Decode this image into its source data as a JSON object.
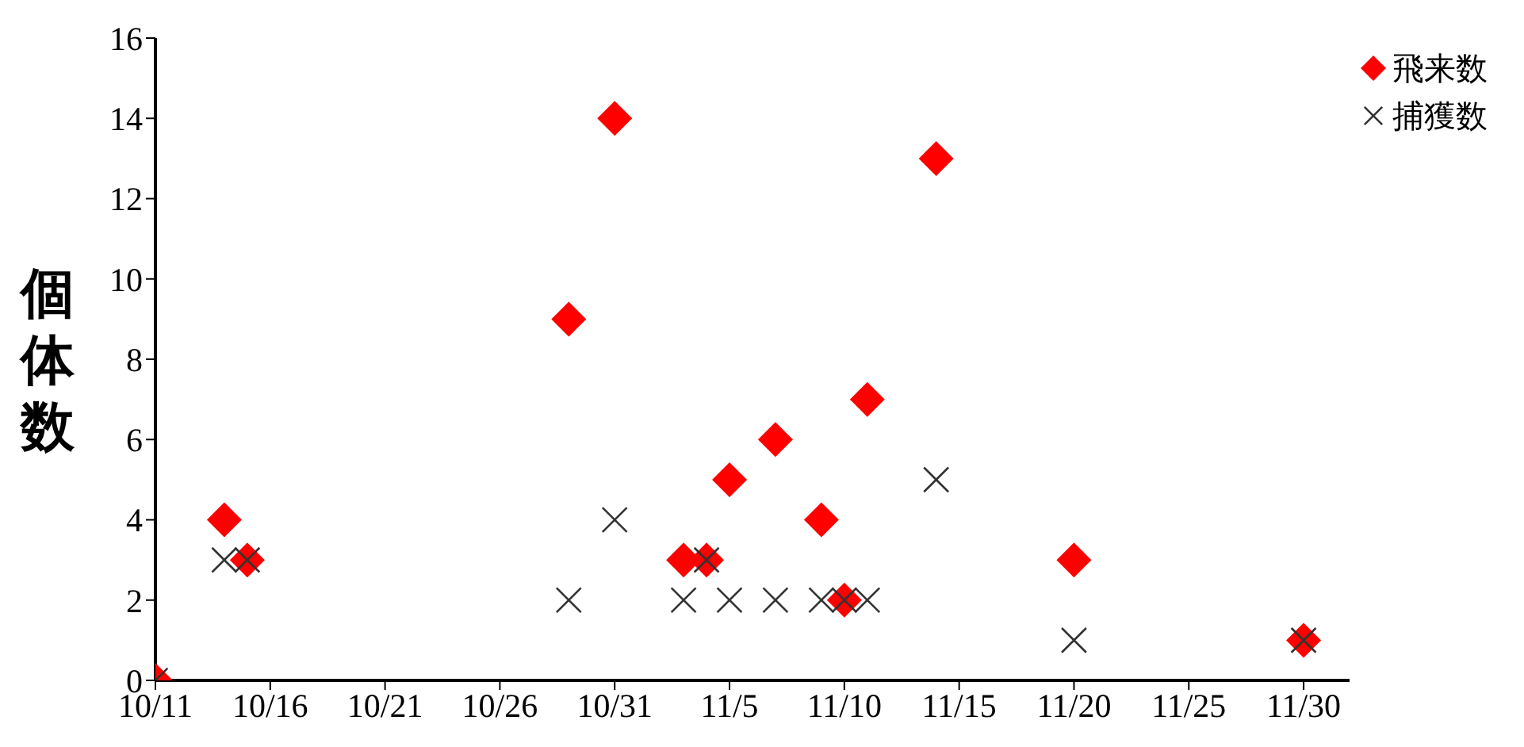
{
  "chart_data": {
    "type": "scatter",
    "ylabel": "個体数",
    "x": [
      "--10-11",
      "--10-14",
      "--10-15",
      "--10-29",
      "--10-31",
      "--11-03",
      "--11-04",
      "--11-05",
      "--11-07",
      "--11-09",
      "--11-10",
      "--11-11",
      "--11-14",
      "--11-20",
      "--11-30"
    ],
    "series": [
      {
        "name": "飛来数",
        "color": "#ff0000",
        "marker": "diamond",
        "values": [
          0,
          4,
          3,
          9,
          14,
          3,
          3,
          5,
          6,
          4,
          2,
          7,
          13,
          3,
          1
        ]
      },
      {
        "name": "捕獲数",
        "color": "#333333",
        "marker": "cross",
        "values": [
          0,
          3,
          3,
          2,
          4,
          2,
          3,
          2,
          2,
          2,
          2,
          2,
          5,
          1,
          1
        ]
      }
    ],
    "xlim": [
      "--10-11",
      "--12-02"
    ],
    "xticks": [
      {
        "value": "--10-11",
        "label": "10/11"
      },
      {
        "value": "--10-16",
        "label": "10/16"
      },
      {
        "value": "--10-21",
        "label": "10/21"
      },
      {
        "value": "--10-26",
        "label": "10/26"
      },
      {
        "value": "--10-31",
        "label": "10/31"
      },
      {
        "value": "--11-05",
        "label": "11/5"
      },
      {
        "value": "--11-10",
        "label": "11/10"
      },
      {
        "value": "--11-15",
        "label": "11/15"
      },
      {
        "value": "--11-20",
        "label": "11/20"
      },
      {
        "value": "--11-25",
        "label": "11/25"
      },
      {
        "value": "--11-30",
        "label": "11/30"
      }
    ],
    "ylim": [
      0,
      16
    ],
    "yticks": [
      0,
      2,
      4,
      6,
      8,
      10,
      12,
      14,
      16
    ],
    "grid": false,
    "legend": "top right"
  }
}
